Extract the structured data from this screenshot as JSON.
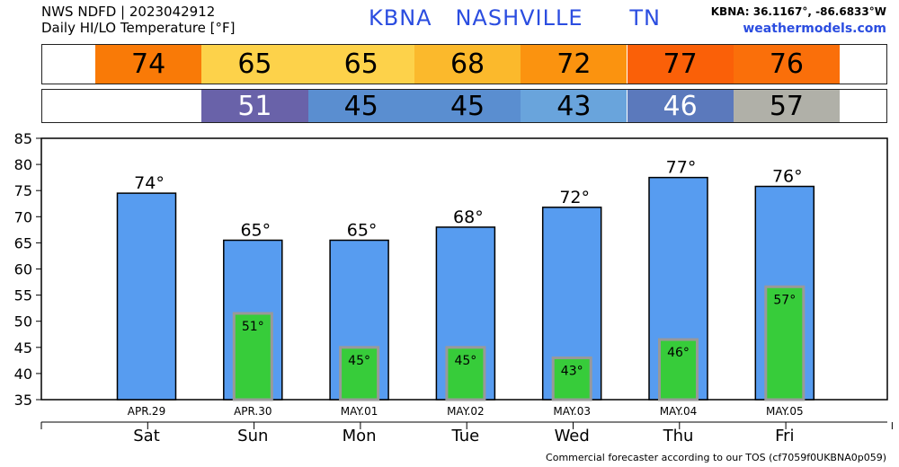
{
  "header": {
    "line1": "NWS NDFD | 2023042912",
    "line2": "Daily HI/LO Temperature [°F]",
    "station_id": "KBNA",
    "station_name": "NASHVILLE",
    "state": "TN",
    "coords": "KBNA: 36.1167°, -86.6833°W",
    "site": "weathermodels.com"
  },
  "hi_strip": [
    {
      "text": "74",
      "color": "#f97a07",
      "text_color": "#000000"
    },
    {
      "text": "65",
      "color": "#fdd24a",
      "text_color": "#000000"
    },
    {
      "text": "65",
      "color": "#fdd24a",
      "text_color": "#000000"
    },
    {
      "text": "68",
      "color": "#fbb92c",
      "text_color": "#000000"
    },
    {
      "text": "72",
      "color": "#fb930f",
      "text_color": "#000000"
    },
    {
      "text": "77",
      "color": "#fa6008",
      "text_color": "#000000"
    },
    {
      "text": "76",
      "color": "#fa6f0a",
      "text_color": "#000000"
    }
  ],
  "lo_strip": [
    {
      "text": "51",
      "color": "#6962a9",
      "text_color": "#ffffff"
    },
    {
      "text": "45",
      "color": "#5a8ed0",
      "text_color": "#000000"
    },
    {
      "text": "45",
      "color": "#5a8ed0",
      "text_color": "#000000"
    },
    {
      "text": "43",
      "color": "#69a4dc",
      "text_color": "#000000"
    },
    {
      "text": "46",
      "color": "#5b79bc",
      "text_color": "#ffffff"
    },
    {
      "text": "57",
      "color": "#b0b0a8",
      "text_color": "#000000"
    }
  ],
  "chart_data": {
    "type": "bar",
    "categories": [
      "Sat",
      "Sun",
      "Mon",
      "Tue",
      "Wed",
      "Thu",
      "Fri"
    ],
    "dates": [
      "APR.29",
      "APR.30",
      "MAY.01",
      "MAY.02",
      "MAY.03",
      "MAY.04",
      "MAY.05"
    ],
    "series": [
      {
        "values": [
          74.5,
          65.5,
          65.5,
          68,
          71.8,
          77.5,
          75.8
        ],
        "labels": [
          "74°",
          "65°",
          "65°",
          "68°",
          "72°",
          "77°",
          "76°"
        ],
        "color": "#579cf0"
      },
      {
        "values": [
          null,
          51.5,
          45,
          45,
          43,
          46.5,
          56.6
        ],
        "labels": [
          "",
          "51°",
          "45°",
          "45°",
          "43°",
          "46°",
          "57°"
        ],
        "color": "#37cc3a"
      }
    ],
    "ylim": [
      35,
      85
    ],
    "yticks": [
      "35",
      "40",
      "45",
      "50",
      "55",
      "60",
      "65",
      "70",
      "75",
      "80",
      "85"
    ],
    "grid": false,
    "legend": "none"
  },
  "footer": "Commercial forecaster according to our TOS (cf7059f0UKBNA0p059)"
}
